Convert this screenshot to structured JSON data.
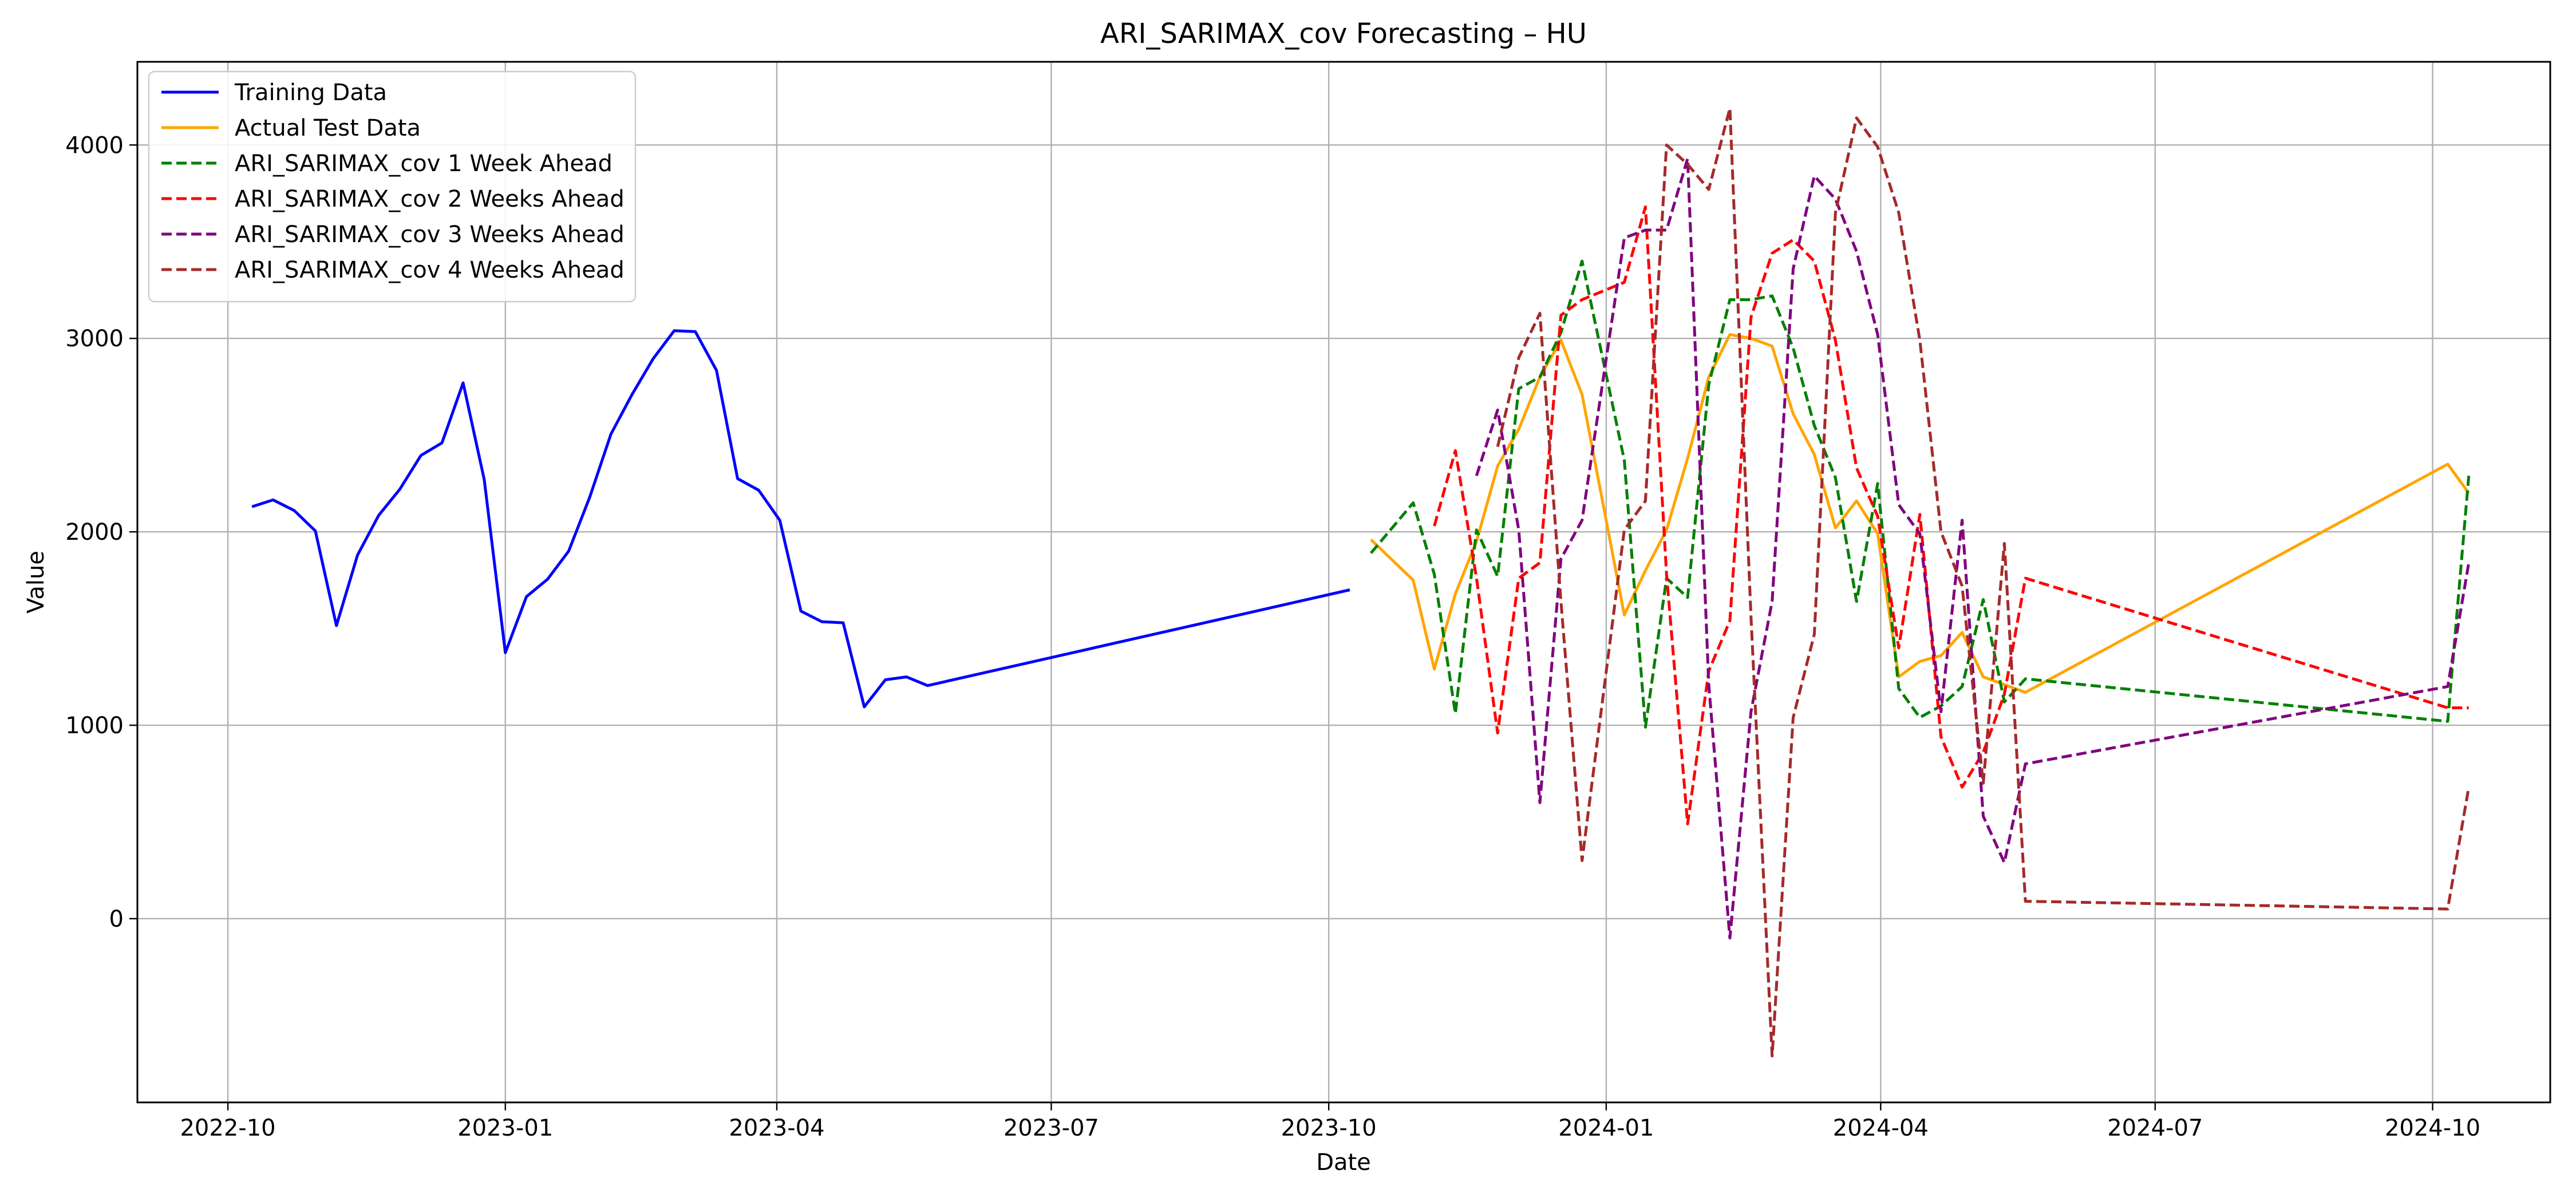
{
  "chart_data": {
    "type": "line",
    "title": "ARI_SARIMAX_cov Forecasting – HU",
    "xlabel": "Date",
    "ylabel": "Value",
    "grid": true,
    "legend_position": "top-left",
    "xlim": [
      "2022-09-01",
      "2024-11-09"
    ],
    "ylim": [
      -950,
      4430
    ],
    "x_ticks": [
      "2022-10-01",
      "2023-01-01",
      "2023-04-01",
      "2023-07-01",
      "2023-10-01",
      "2024-01-01",
      "2024-04-01",
      "2024-07-01",
      "2024-10-01"
    ],
    "x_tick_labels": [
      "2022-10",
      "2023-01",
      "2023-04",
      "2023-07",
      "2023-10",
      "2024-01",
      "2024-04",
      "2024-07",
      "2024-10"
    ],
    "y_ticks": [
      0,
      1000,
      2000,
      3000,
      4000
    ],
    "y_tick_labels": [
      "0",
      "1000",
      "2000",
      "3000",
      "4000"
    ],
    "series": [
      {
        "name": "Training Data",
        "color": "#0000ff",
        "dash": "solid",
        "x": [
          "2022-10-09",
          "2022-10-16",
          "2022-10-23",
          "2022-10-30",
          "2022-11-06",
          "2022-11-13",
          "2022-11-20",
          "2022-11-27",
          "2022-12-04",
          "2022-12-11",
          "2022-12-18",
          "2022-12-25",
          "2023-01-01",
          "2023-01-08",
          "2023-01-15",
          "2023-01-22",
          "2023-01-29",
          "2023-02-05",
          "2023-02-12",
          "2023-02-19",
          "2023-02-26",
          "2023-03-05",
          "2023-03-12",
          "2023-03-19",
          "2023-03-26",
          "2023-04-02",
          "2023-04-09",
          "2023-04-16",
          "2023-04-23",
          "2023-04-30",
          "2023-05-07",
          "2023-05-14",
          "2023-05-21",
          "2023-10-08"
        ],
        "y": [
          2130,
          2165,
          2110,
          2005,
          1515,
          1880,
          2085,
          2220,
          2395,
          2460,
          2770,
          2270,
          1375,
          1665,
          1755,
          1900,
          2180,
          2505,
          2710,
          2895,
          3040,
          3035,
          2835,
          2275,
          2215,
          2060,
          1590,
          1535,
          1530,
          1095,
          1235,
          1250,
          1205,
          1700
        ]
      },
      {
        "name": "Actual Test Data",
        "color": "#ffa500",
        "dash": "solid",
        "x": [
          "2023-10-15",
          "2023-10-29",
          "2023-11-05",
          "2023-11-12",
          "2023-11-19",
          "2023-11-26",
          "2023-12-03",
          "2023-12-10",
          "2023-12-17",
          "2023-12-24",
          "2024-01-07",
          "2024-01-14",
          "2024-01-21",
          "2024-01-28",
          "2024-02-04",
          "2024-02-11",
          "2024-02-18",
          "2024-02-25",
          "2024-03-03",
          "2024-03-10",
          "2024-03-17",
          "2024-03-24",
          "2024-03-31",
          "2024-04-07",
          "2024-04-14",
          "2024-04-21",
          "2024-04-28",
          "2024-05-05",
          "2024-05-12",
          "2024-05-19",
          "2024-10-06",
          "2024-10-13"
        ],
        "y": [
          1960,
          1750,
          1290,
          1680,
          1950,
          2340,
          2530,
          2800,
          2990,
          2710,
          1570,
          1800,
          2010,
          2380,
          2800,
          3020,
          3000,
          2960,
          2610,
          2400,
          2020,
          2160,
          1990,
          1250,
          1330,
          1360,
          1480,
          1250,
          1210,
          1170,
          2350,
          2200
        ]
      },
      {
        "name": "ARI_SARIMAX_cov 1 Week Ahead",
        "color": "#008000",
        "dash": "dashed",
        "x": [
          "2023-10-15",
          "2023-10-29",
          "2023-11-05",
          "2023-11-12",
          "2023-11-19",
          "2023-11-26",
          "2023-12-03",
          "2023-12-10",
          "2023-12-17",
          "2023-12-24",
          "2024-01-07",
          "2024-01-14",
          "2024-01-21",
          "2024-01-28",
          "2024-02-04",
          "2024-02-11",
          "2024-02-18",
          "2024-02-25",
          "2024-03-03",
          "2024-03-10",
          "2024-03-17",
          "2024-03-24",
          "2024-03-31",
          "2024-04-07",
          "2024-04-14",
          "2024-04-21",
          "2024-04-28",
          "2024-05-05",
          "2024-05-12",
          "2024-05-19",
          "2024-10-06",
          "2024-10-13"
        ],
        "y": [
          1890,
          2150,
          1780,
          1060,
          2010,
          1770,
          2740,
          2800,
          3030,
          3400,
          2370,
          990,
          1760,
          1660,
          2760,
          3200,
          3200,
          3220,
          2950,
          2550,
          2280,
          1640,
          2250,
          1190,
          1040,
          1100,
          1200,
          1650,
          1120,
          1240,
          1020,
          2290
        ]
      },
      {
        "name": "ARI_SARIMAX_cov 2 Weeks Ahead",
        "color": "#ff0000",
        "dash": "dashed",
        "x": [
          "2023-11-05",
          "2023-11-12",
          "2023-11-19",
          "2023-11-26",
          "2023-12-03",
          "2023-12-10",
          "2023-12-17",
          "2023-12-24",
          "2024-01-07",
          "2024-01-14",
          "2024-01-21",
          "2024-01-28",
          "2024-02-04",
          "2024-02-11",
          "2024-02-18",
          "2024-02-25",
          "2024-03-03",
          "2024-03-10",
          "2024-03-17",
          "2024-03-24",
          "2024-03-31",
          "2024-04-07",
          "2024-04-14",
          "2024-04-21",
          "2024-04-28",
          "2024-05-05",
          "2024-05-12",
          "2024-05-19",
          "2024-10-06",
          "2024-10-13"
        ],
        "y": [
          2030,
          2420,
          1760,
          960,
          1760,
          1840,
          3120,
          3200,
          3290,
          3680,
          1780,
          490,
          1280,
          1540,
          3110,
          3440,
          3510,
          3400,
          2990,
          2330,
          2080,
          1400,
          2090,
          940,
          680,
          860,
          1160,
          1760,
          1090,
          1090
        ]
      },
      {
        "name": "ARI_SARIMAX_cov 3 Weeks Ahead",
        "color": "#800080",
        "dash": "dashed",
        "x": [
          "2023-11-19",
          "2023-11-26",
          "2023-12-03",
          "2023-12-10",
          "2023-12-17",
          "2023-12-24",
          "2024-01-07",
          "2024-01-14",
          "2024-01-21",
          "2024-01-28",
          "2024-02-04",
          "2024-02-11",
          "2024-02-18",
          "2024-02-25",
          "2024-03-03",
          "2024-03-10",
          "2024-03-17",
          "2024-03-24",
          "2024-03-31",
          "2024-04-07",
          "2024-04-14",
          "2024-04-21",
          "2024-04-28",
          "2024-05-05",
          "2024-05-12",
          "2024-05-19",
          "2024-10-06",
          "2024-10-13"
        ],
        "y": [
          2290,
          2630,
          2010,
          600,
          1860,
          2060,
          3520,
          3560,
          3560,
          3930,
          1210,
          -100,
          1070,
          1640,
          3360,
          3840,
          3720,
          3450,
          3020,
          2140,
          1990,
          1070,
          2060,
          530,
          290,
          800,
          1200,
          1840
        ]
      },
      {
        "name": "ARI_SARIMAX_cov 4 Weeks Ahead",
        "color": "#a52a2a",
        "dash": "dashed",
        "x": [
          "2023-11-26",
          "2023-12-03",
          "2023-12-10",
          "2023-12-17",
          "2023-12-24",
          "2024-01-07",
          "2024-01-14",
          "2024-01-21",
          "2024-01-28",
          "2024-02-04",
          "2024-02-11",
          "2024-02-18",
          "2024-02-25",
          "2024-03-03",
          "2024-03-10",
          "2024-03-17",
          "2024-03-24",
          "2024-03-31",
          "2024-04-07",
          "2024-04-14",
          "2024-04-21",
          "2024-04-28",
          "2024-05-05",
          "2024-05-12",
          "2024-05-19",
          "2024-10-06",
          "2024-10-13"
        ],
        "y": [
          2440,
          2900,
          3130,
          1640,
          300,
          2010,
          2160,
          4000,
          3900,
          3770,
          4190,
          1560,
          -710,
          1040,
          1470,
          3650,
          4140,
          3990,
          3650,
          2990,
          2000,
          1720,
          700,
          1940,
          90,
          50,
          680
        ]
      }
    ]
  }
}
